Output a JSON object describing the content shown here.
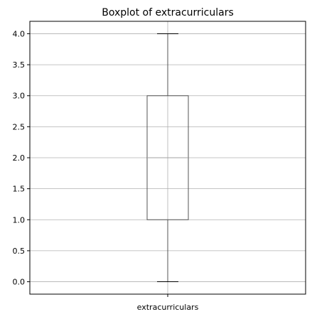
{
  "chart_data": {
    "type": "box",
    "title": "Boxplot of extracurriculars",
    "categories": [
      "extracurriculars"
    ],
    "boxes": [
      {
        "whisker_low": 0.0,
        "q1": 1.0,
        "median": 2.0,
        "q3": 3.0,
        "whisker_high": 4.0
      }
    ],
    "ylim": [
      -0.2,
      4.2
    ],
    "yticks": [
      0.0,
      0.5,
      1.0,
      1.5,
      2.0,
      2.5,
      3.0,
      3.5,
      4.0
    ],
    "ytick_labels": [
      "0.0",
      "0.5",
      "1.0",
      "1.5",
      "2.0",
      "2.5",
      "3.0",
      "3.5",
      "4.0"
    ],
    "grid": true,
    "colors": {
      "grid": "#b0b0b0",
      "box": "#555555",
      "median": "#a0a0a0",
      "axes": "#000000"
    }
  }
}
